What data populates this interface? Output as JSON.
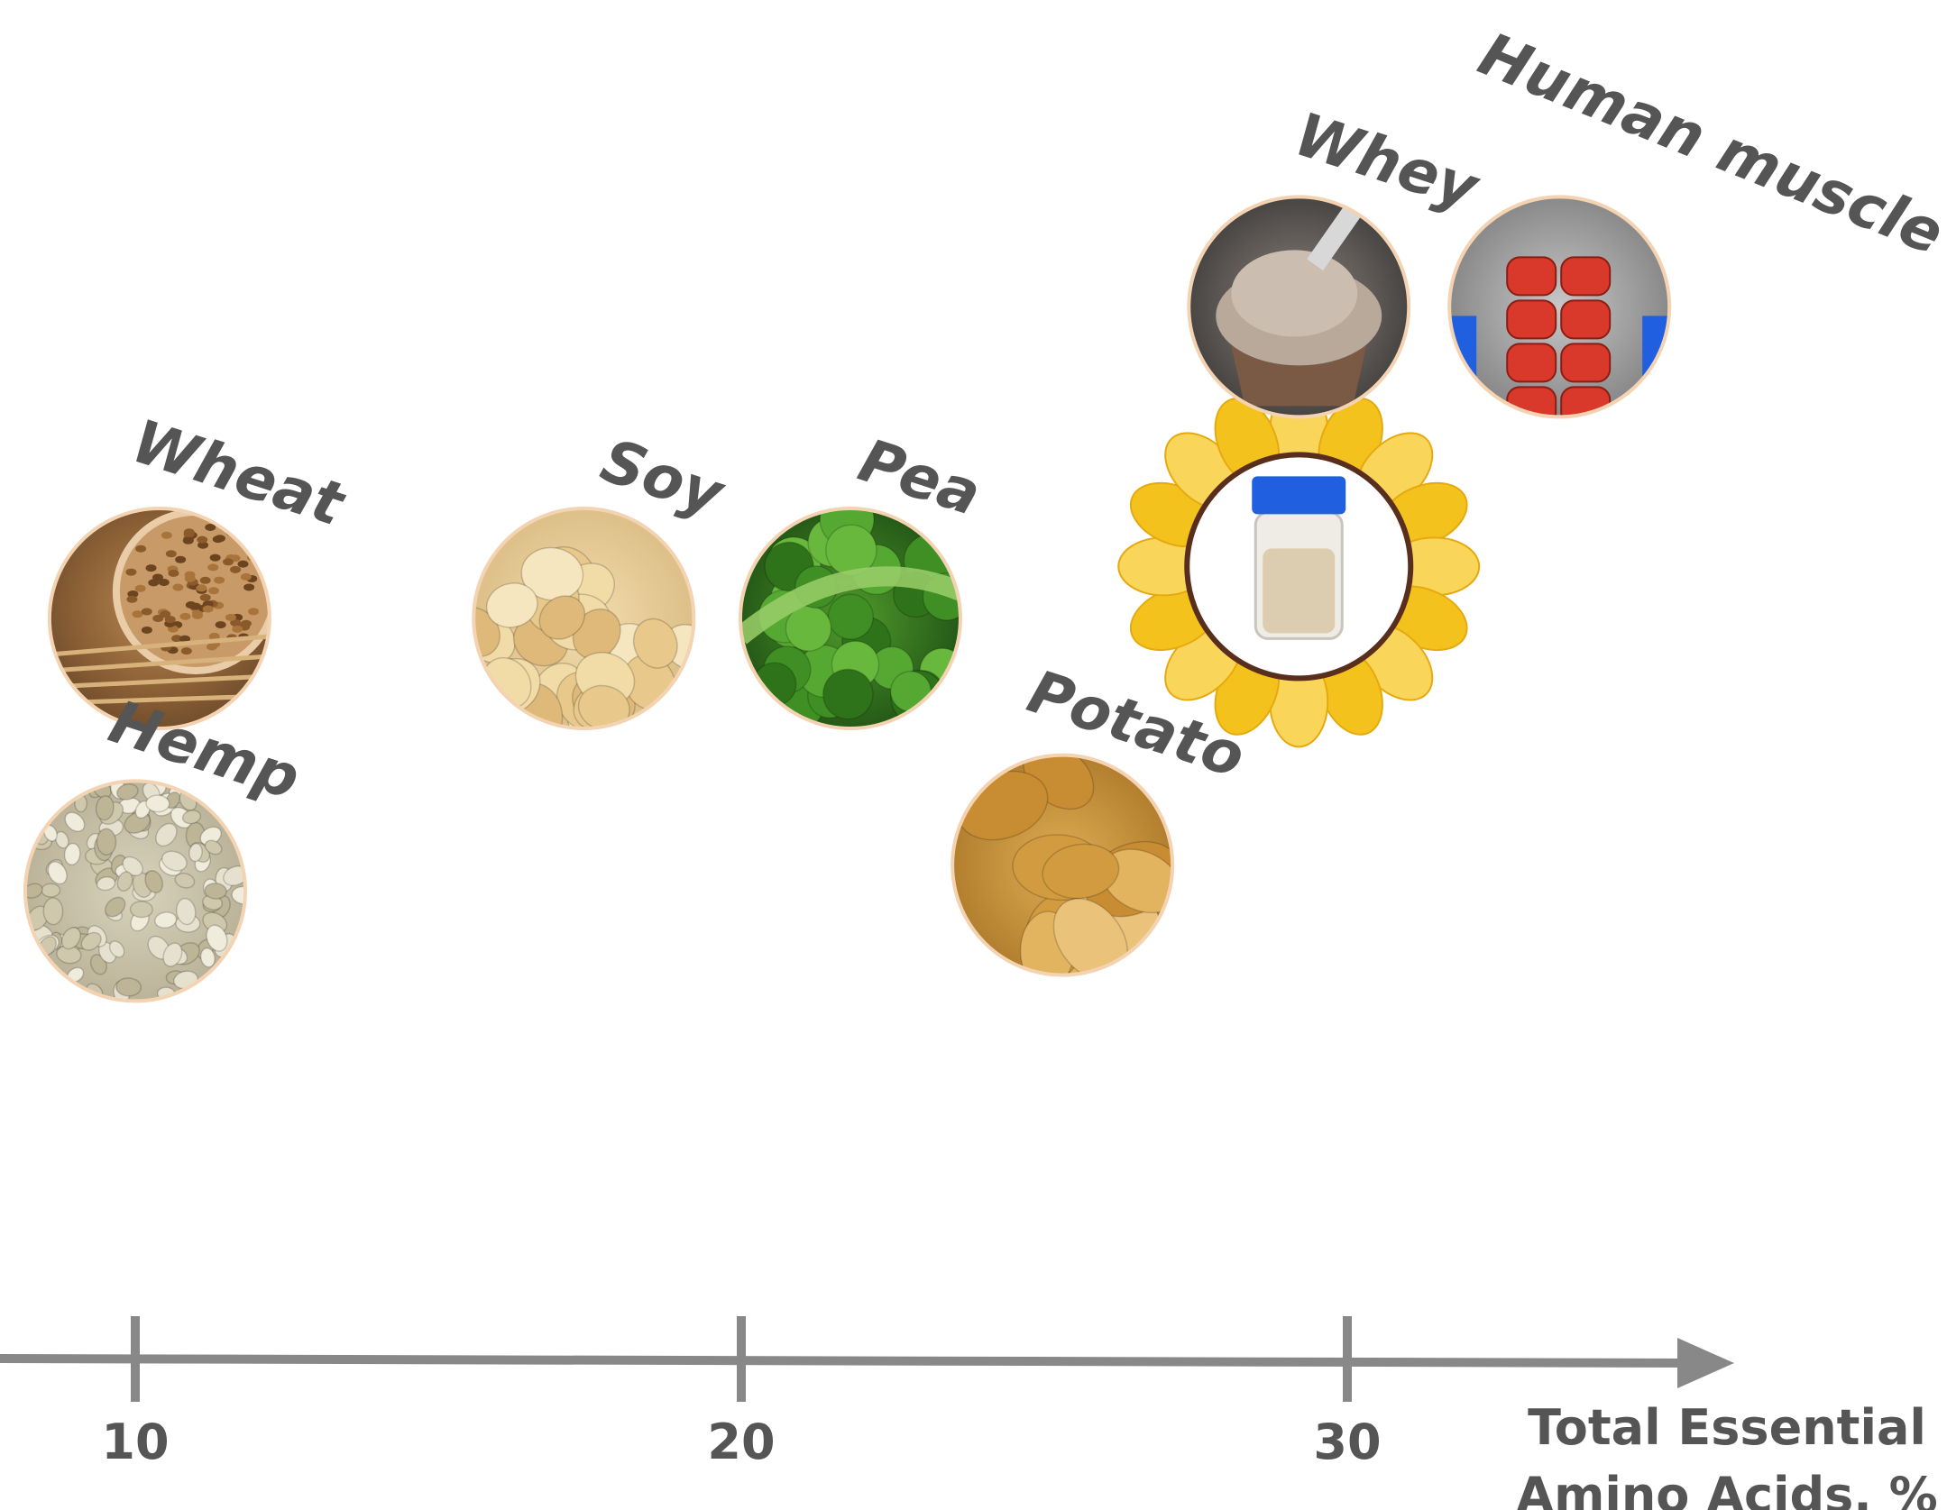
{
  "chart_data": {
    "type": "scatter",
    "xlabel_lines": [
      "Total Essential",
      "Amino Acids, %"
    ],
    "x_ticks": [
      10,
      20,
      30
    ],
    "xlim": [
      8,
      33.5
    ],
    "ylabel": "",
    "grid": false,
    "points": [
      {
        "label": "Wheat",
        "x": 10.4,
        "y": 0.6,
        "picture": "wheat-grains-bowl"
      },
      {
        "label": "Hemp",
        "x": 10.0,
        "y": 0.39,
        "picture": "hemp-seeds"
      },
      {
        "label": "Soy",
        "x": 17.4,
        "y": 0.6,
        "picture": "soybeans"
      },
      {
        "label": "Pea",
        "x": 21.8,
        "y": 0.6,
        "picture": "green-peas-in-pod"
      },
      {
        "label": "Potato",
        "x": 25.3,
        "y": 0.41,
        "picture": "potatoes"
      },
      {
        "label": "",
        "x": 29.2,
        "y": 0.64,
        "picture": "protein-powder-jar-sunflower"
      },
      {
        "label": "Whey",
        "x": 29.2,
        "y": 0.84,
        "picture": "whey-scoop"
      },
      {
        "label": "Human muscle",
        "x": 33.5,
        "y": 0.84,
        "picture": "abdominal-muscles"
      }
    ]
  }
}
